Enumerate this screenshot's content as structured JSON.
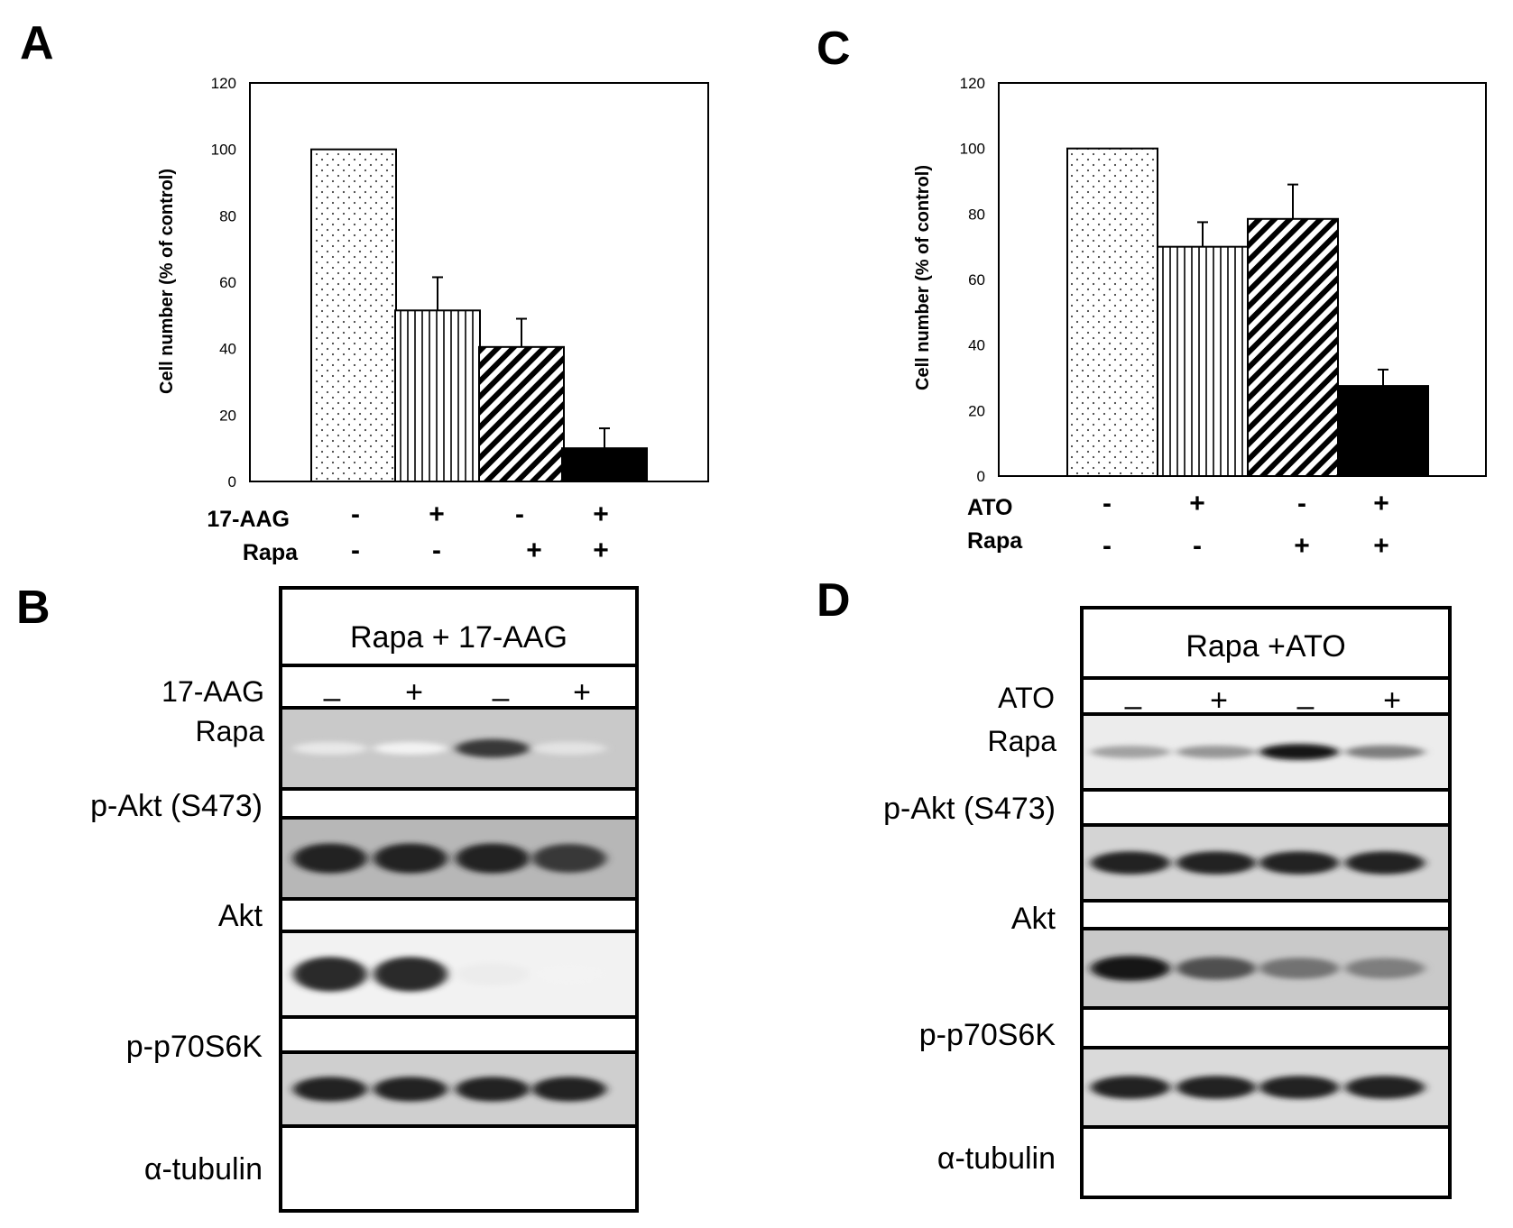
{
  "panels": {
    "A": "A",
    "B": "B",
    "C": "C",
    "D": "D"
  },
  "chart_data": [
    {
      "type": "bar",
      "panel": "A",
      "ylabel": "Cell number (% of control)",
      "ylim": [
        0,
        120
      ],
      "yticks": [
        0,
        20,
        40,
        60,
        80,
        100,
        120
      ],
      "values": [
        100,
        51.5,
        40.5,
        10
      ],
      "errors": [
        0,
        10,
        8.5,
        6
      ],
      "patterns": [
        "dots",
        "vertical",
        "diagonal",
        "solid"
      ],
      "treatments": [
        {
          "name": "17-AAG",
          "signs": [
            "-",
            "+",
            "-",
            "+"
          ]
        },
        {
          "name": "Rapa",
          "signs": [
            "-",
            "-",
            "+",
            "+"
          ]
        }
      ]
    },
    {
      "type": "bar",
      "panel": "C",
      "ylabel": "Cell number (% of control)",
      "ylim": [
        0,
        120
      ],
      "yticks": [
        0,
        20,
        40,
        60,
        80,
        100,
        120
      ],
      "values": [
        100,
        70,
        78.5,
        27.5
      ],
      "errors": [
        0,
        7.5,
        10.5,
        5
      ],
      "patterns": [
        "dots",
        "vertical",
        "diagonal",
        "solid"
      ],
      "treatments": [
        {
          "name": "ATO",
          "signs": [
            "-",
            "+",
            "-",
            "+"
          ]
        },
        {
          "name": "Rapa",
          "signs": [
            "-",
            "-",
            "+",
            "+"
          ]
        }
      ]
    }
  ],
  "blots": {
    "B": {
      "title": "Rapa + 17-AAG",
      "treatments": [
        {
          "name": "17-AAG",
          "signs": [
            "–",
            "+",
            "–",
            "+"
          ]
        },
        {
          "name": "Rapa",
          "signs": [
            "–",
            "–",
            "+",
            "+"
          ]
        }
      ],
      "rows": [
        {
          "label": "p-Akt (S473)",
          "intensities": [
            0.1,
            0.05,
            0.85,
            0.12
          ]
        },
        {
          "label": "Akt",
          "intensities": [
            0.95,
            0.95,
            0.95,
            0.85
          ]
        },
        {
          "label": "p-p70S6K",
          "intensities": [
            0.9,
            0.9,
            0.08,
            0.05
          ]
        },
        {
          "label": "α-tubulin",
          "intensities": [
            0.95,
            0.95,
            0.95,
            0.95
          ]
        }
      ]
    },
    "D": {
      "title": "Rapa +ATO",
      "treatments": [
        {
          "name": "ATO",
          "signs": [
            "–",
            "+",
            "–",
            "+"
          ]
        },
        {
          "name": "Rapa",
          "signs": [
            "–",
            "–",
            "+",
            "+"
          ]
        }
      ],
      "rows": [
        {
          "label": "p-Akt (S473)",
          "intensities": [
            0.4,
            0.45,
            0.98,
            0.55
          ]
        },
        {
          "label": "Akt",
          "intensities": [
            0.95,
            0.95,
            0.95,
            0.95
          ]
        },
        {
          "label": "p-p70S6K",
          "intensities": [
            0.98,
            0.75,
            0.6,
            0.55
          ]
        },
        {
          "label": "α-tubulin",
          "intensities": [
            0.95,
            0.95,
            0.95,
            0.95
          ]
        }
      ]
    }
  }
}
